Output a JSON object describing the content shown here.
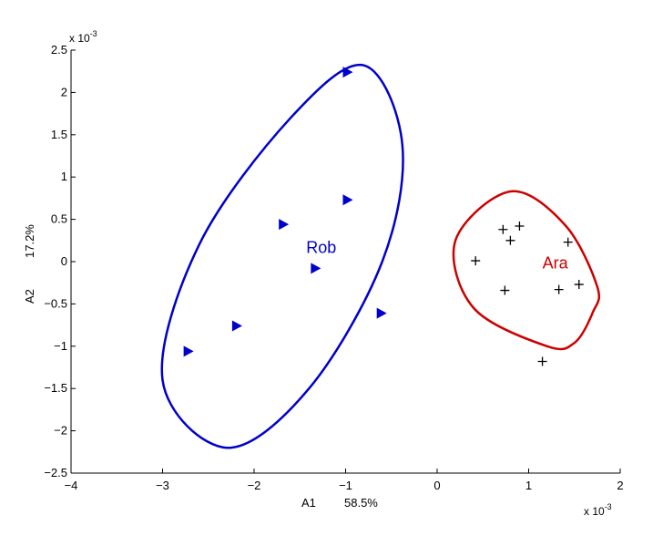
{
  "chart_data": {
    "type": "scatter",
    "x_exponent_label": "x 10",
    "x_exponent_power": "-3",
    "y_exponent_label": "x 10",
    "y_exponent_power": "-3",
    "xlabel": "A1",
    "xlabel_pct": "58.5%",
    "ylabel": "A2",
    "ylabel_pct": "17.2%",
    "xlim": [
      -4,
      2
    ],
    "ylim": [
      -2.5,
      2.5
    ],
    "x_unit_scale": "1e-3",
    "y_unit_scale": "1e-3",
    "grid": false,
    "x_ticks": [
      -4,
      -3,
      -2,
      -1,
      0,
      1,
      2
    ],
    "y_ticks": [
      2.5,
      2,
      1.5,
      1,
      0.5,
      0,
      -0.5,
      -1,
      -1.5,
      -2,
      -2.5
    ],
    "x_tick_labels": [
      "−4",
      "−3",
      "−2",
      "−1",
      "0",
      "1",
      "2"
    ],
    "y_tick_labels": [
      "2.5",
      "2",
      "1.5",
      "1",
      "0.5",
      "0",
      "−0.5",
      "−1",
      "−1.5",
      "−2",
      "−2.5"
    ],
    "series": [
      {
        "name": "Rob",
        "color": "#0000cc",
        "marker": "triangle-right",
        "label_at": {
          "x": -1.43,
          "y": 0.1
        },
        "points": [
          {
            "x": -0.98,
            "y": 2.24
          },
          {
            "x": -0.98,
            "y": 0.73
          },
          {
            "x": -1.68,
            "y": 0.44
          },
          {
            "x": -1.33,
            "y": -0.08
          },
          {
            "x": -0.61,
            "y": -0.61
          },
          {
            "x": -2.19,
            "y": -0.76
          },
          {
            "x": -2.72,
            "y": -1.06
          }
        ],
        "ellipse": {
          "points": [
            {
              "x": -0.38,
              "y": 1.38
            },
            {
              "x": -0.8,
              "y": 2.32
            },
            {
              "x": -1.6,
              "y": 1.7
            },
            {
              "x": -2.6,
              "y": 0.2
            },
            {
              "x": -3.0,
              "y": -1.4
            },
            {
              "x": -2.3,
              "y": -2.2
            },
            {
              "x": -1.4,
              "y": -1.5
            },
            {
              "x": -0.6,
              "y": 0.0
            }
          ]
        }
      },
      {
        "name": "Ara",
        "color": "#cc0000",
        "marker": "plus",
        "label_at": {
          "x": 1.15,
          "y": -0.08
        },
        "points": [
          {
            "x": 0.72,
            "y": 0.38
          },
          {
            "x": 0.9,
            "y": 0.42
          },
          {
            "x": 0.8,
            "y": 0.25
          },
          {
            "x": 1.43,
            "y": 0.23
          },
          {
            "x": 0.42,
            "y": 0.01
          },
          {
            "x": 0.74,
            "y": -0.34
          },
          {
            "x": 1.33,
            "y": -0.33
          },
          {
            "x": 1.55,
            "y": -0.27
          },
          {
            "x": 1.15,
            "y": -1.18
          }
        ],
        "ellipse": {
          "points": [
            {
              "x": 1.75,
              "y": -0.3
            },
            {
              "x": 1.4,
              "y": 0.43
            },
            {
              "x": 0.8,
              "y": 0.83
            },
            {
              "x": 0.2,
              "y": 0.25
            },
            {
              "x": 0.4,
              "y": -0.55
            },
            {
              "x": 1.2,
              "y": -1.0
            },
            {
              "x": 1.5,
              "y": -0.96
            },
            {
              "x": 1.7,
              "y": -0.6
            }
          ]
        }
      }
    ]
  }
}
